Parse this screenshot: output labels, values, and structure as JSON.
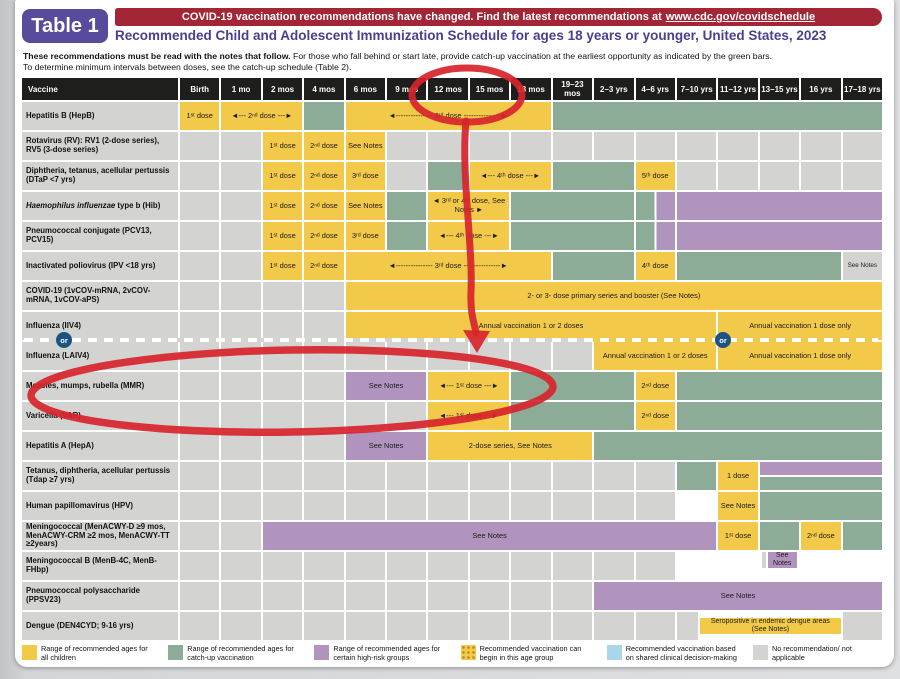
{
  "page": {
    "table_badge": "Table 1",
    "banner_text": "COVID-19 vaccination recommendations have changed. Find the latest recommendations at",
    "banner_url": "www.cdc.gov/covidschedule",
    "title": "Recommended Child and Adolescent Immunization Schedule for ages 18 years or younger, United States, 2023",
    "note_bold": "These recommendations must be read with the notes that follow.",
    "note_rest": "For those who fall behind or start late, provide catch-up vaccination at the earliest opportunity as indicated by the green bars.",
    "note_line2": "To determine minimum intervals between doses, see the catch-up schedule (Table 2)."
  },
  "or_label": "or",
  "columns": [
    "Vaccine",
    "Birth",
    "1 mo",
    "2 mos",
    "4 mos",
    "6 mos",
    "9 mos",
    "12 mos",
    "15 mos",
    "18 mos",
    "19–23 mos",
    "2–3 yrs",
    "4–6 yrs",
    "7–10 yrs",
    "11–12 yrs",
    "13–15 yrs",
    "16 yrs",
    "17–18 yrs"
  ],
  "rows": [
    {
      "label": "Hepatitis B (HepB)",
      "cells": [
        {
          "s": 1,
          "c": "y",
          "t": "1ˢᵗ dose"
        },
        {
          "s": 2,
          "c": "y",
          "t": "◄--- 2ⁿᵈ dose ---►",
          "cls": "nw"
        },
        {
          "s": 1,
          "c": "g"
        },
        {
          "s": 5,
          "c": "y",
          "t": "◄--------------- 3ʳᵈ dose ---------------►",
          "cls": "nw"
        },
        {
          "s": 8,
          "c": "g"
        }
      ]
    },
    {
      "label": "Rotavirus (RV): RV1 (2-dose series), RV5 (3-dose series)",
      "cells": [
        {
          "rep": 2,
          "c": "x"
        },
        {
          "s": 1,
          "c": "y",
          "t": "1ˢᵗ dose"
        },
        {
          "s": 1,
          "c": "y",
          "t": "2ⁿᵈ dose"
        },
        {
          "s": 1,
          "c": "y",
          "t": "See Notes"
        },
        {
          "rep": 12,
          "c": "x"
        }
      ]
    },
    {
      "label": "Diphtheria, tetanus, acellular pertussis (DTaP <7 yrs)",
      "cells": [
        {
          "rep": 2,
          "c": "x"
        },
        {
          "s": 1,
          "c": "y",
          "t": "1ˢᵗ dose"
        },
        {
          "s": 1,
          "c": "y",
          "t": "2ⁿᵈ dose"
        },
        {
          "s": 1,
          "c": "y",
          "t": "3ʳᵈ dose"
        },
        {
          "s": 1,
          "c": "x"
        },
        {
          "s": 1,
          "c": "g"
        },
        {
          "s": 2,
          "c": "y",
          "t": "◄--- 4ᵗʰ dose ---►",
          "cls": "nw"
        },
        {
          "s": 2,
          "c": "g"
        },
        {
          "s": 1,
          "c": "y",
          "t": "5ᵗʰ dose"
        },
        {
          "rep": 5,
          "c": "x"
        }
      ]
    },
    {
      "label_parts": [
        {
          "t": "Haemophilus influenzae",
          "i": true
        },
        {
          "t": " type b (Hib)"
        }
      ],
      "cells": [
        {
          "rep": 2,
          "c": "x"
        },
        {
          "s": 1,
          "c": "y",
          "t": "1ˢᵗ dose"
        },
        {
          "s": 1,
          "c": "y",
          "t": "2ⁿᵈ dose"
        },
        {
          "s": 1,
          "c": "y",
          "t": "See Notes"
        },
        {
          "s": 1,
          "c": "g"
        },
        {
          "s": 2,
          "c": "y",
          "t": "◄ 3ʳᵈ or 4ᵗʰ dose, See Notes ►"
        },
        {
          "s": 3,
          "c": "g"
        },
        {
          "s": 1,
          "type": "split"
        },
        {
          "s": 5,
          "c": "p"
        }
      ]
    },
    {
      "label": "Pneumococcal conjugate (PCV13, PCV15)",
      "cells": [
        {
          "rep": 2,
          "c": "x"
        },
        {
          "s": 1,
          "c": "y",
          "t": "1ˢᵗ dose"
        },
        {
          "s": 1,
          "c": "y",
          "t": "2ⁿᵈ dose"
        },
        {
          "s": 1,
          "c": "y",
          "t": "3ʳᵈ dose"
        },
        {
          "s": 1,
          "c": "g"
        },
        {
          "s": 2,
          "c": "y",
          "t": "◄--- 4ᵗʰ dose ---►",
          "cls": "nw"
        },
        {
          "s": 3,
          "c": "g"
        },
        {
          "s": 1,
          "type": "split"
        },
        {
          "s": 5,
          "c": "p"
        }
      ]
    },
    {
      "label": "Inactivated poliovirus (IPV <18 yrs)",
      "cells": [
        {
          "rep": 2,
          "c": "x"
        },
        {
          "s": 1,
          "c": "y",
          "t": "1ˢᵗ dose"
        },
        {
          "s": 1,
          "c": "y",
          "t": "2ⁿᵈ dose"
        },
        {
          "s": 5,
          "c": "y",
          "t": "◄--------------- 3ʳᵈ dose ---------------►",
          "cls": "nw"
        },
        {
          "s": 2,
          "c": "g"
        },
        {
          "s": 1,
          "c": "y",
          "t": "4ᵗʰ dose"
        },
        {
          "s": 4,
          "c": "g"
        },
        {
          "s": 1,
          "c": "x",
          "t": "See Notes",
          "cls": "tiny"
        }
      ]
    },
    {
      "label": "COVID-19 (1vCOV-mRNA, 2vCOV-mRNA, 1vCOV-aPS)",
      "cells": [
        {
          "rep": 4,
          "c": "x"
        },
        {
          "s": 13,
          "c": "y",
          "t": "2- or 3- dose primary series and booster (See Notes)"
        }
      ]
    },
    {
      "label": "Influenza (IIV4)",
      "cells": [
        {
          "rep": 4,
          "c": "x"
        },
        {
          "s": 9,
          "c": "y",
          "t": "Annual vaccination 1 or 2 doses"
        },
        {
          "s": 4,
          "c": "y",
          "t": "Annual vaccination 1 dose only"
        }
      ]
    },
    {
      "label": "Influenza (LAIV4)",
      "cells": [
        {
          "rep": 10,
          "c": "x"
        },
        {
          "s": 3,
          "c": "y",
          "t": "Annual vaccination 1 or 2 doses"
        },
        {
          "s": 4,
          "c": "y",
          "t": "Annual vaccination 1 dose only"
        }
      ]
    },
    {
      "label": "Measles, mumps, rubella (MMR)",
      "cells": [
        {
          "rep": 4,
          "c": "x"
        },
        {
          "s": 2,
          "c": "p",
          "t": "See Notes"
        },
        {
          "s": 2,
          "c": "y",
          "t": "◄--- 1ˢᵗ dose ---►",
          "cls": "nw"
        },
        {
          "s": 3,
          "c": "g"
        },
        {
          "s": 1,
          "c": "y",
          "t": "2ⁿᵈ dose"
        },
        {
          "s": 5,
          "c": "g"
        }
      ]
    },
    {
      "label": "Varicella (VAR)",
      "cells": [
        {
          "rep": 6,
          "c": "x"
        },
        {
          "s": 2,
          "c": "y",
          "t": "◄--- 1ˢᵗ dose ---►",
          "cls": "nw"
        },
        {
          "s": 3,
          "c": "g"
        },
        {
          "s": 1,
          "c": "y",
          "t": "2ⁿᵈ dose"
        },
        {
          "s": 5,
          "c": "g"
        }
      ]
    },
    {
      "label": "Hepatitis A (HepA)",
      "cells": [
        {
          "rep": 4,
          "c": "x"
        },
        {
          "s": 2,
          "c": "p",
          "t": "See Notes"
        },
        {
          "s": 4,
          "c": "y",
          "t": "2-dose series, See Notes"
        },
        {
          "s": 7,
          "c": "g"
        }
      ]
    },
    {
      "label": "Tetanus, diphtheria, acellular pertussis (Tdap ≥7 yrs)",
      "cells": [
        {
          "rep": 12,
          "c": "x"
        },
        {
          "s": 1,
          "c": "g"
        },
        {
          "s": 1,
          "c": "y",
          "t": "1 dose"
        },
        {
          "s": 3,
          "type": "hsplit"
        }
      ]
    },
    {
      "label": "Human papillomavirus (HPV)",
      "cells": [
        {
          "rep": 12,
          "c": "x"
        },
        {
          "s": 1,
          "type": "quad"
        },
        {
          "s": 1,
          "c": "y",
          "t": "See Notes"
        },
        {
          "s": 3,
          "c": "g"
        }
      ]
    },
    {
      "label": "Meningococcal (MenACWY-D ≥9 mos, MenACWY-CRM ≥2 mos,  MenACWY-TT ≥2years)",
      "cells": [
        {
          "rep": 2,
          "c": "x"
        },
        {
          "s": 11,
          "c": "p",
          "t": "See Notes"
        },
        {
          "s": 1,
          "c": "y",
          "t": "1ˢᵗ dose"
        },
        {
          "s": 1,
          "c": "g"
        },
        {
          "s": 1,
          "c": "y",
          "t": "2ⁿᵈ dose"
        },
        {
          "s": 1,
          "c": "g"
        }
      ]
    },
    {
      "label": "Meningococcal B (MenB-4C, MenB-FHbp)",
      "cells": [
        {
          "rep": 12,
          "c": "x"
        },
        {
          "s": 5,
          "type": "menb",
          "t": "See Notes"
        }
      ]
    },
    {
      "label": "Pneumococcal polysaccharide (PPSV23)",
      "cells": [
        {
          "rep": 10,
          "c": "x"
        },
        {
          "s": 7,
          "c": "p",
          "t": "See Notes"
        }
      ]
    },
    {
      "label": "Dengue (DEN4CYD; 9-16 yrs)",
      "cells": [
        {
          "rep": 12,
          "c": "x"
        },
        {
          "s": 4,
          "type": "dengue",
          "t": "Seropositive in endemic dengue areas (See Notes)"
        },
        {
          "s": 1,
          "c": "x"
        }
      ]
    }
  ],
  "legend": [
    {
      "c": "y",
      "t": "Range of recommended ages for all children"
    },
    {
      "c": "g",
      "t": "Range of recommended ages for catch-up vaccination"
    },
    {
      "c": "p",
      "t": "Range of recommended ages for certain high-risk groups"
    },
    {
      "c": "k",
      "t": "Recommended vaccination can begin in this age group"
    },
    {
      "c": "b",
      "t": "Recommended vaccination based on shared clinical decision-making"
    },
    {
      "c": "x",
      "t": "No recommendation/ not applicable"
    }
  ],
  "colors": {
    "all_children_yellow": "#F3C94A",
    "catch_up_green": "#8CAC97",
    "high_risk_purple": "#B194BD",
    "no_recommendation_gray": "#D3D3D1",
    "shared_decision_blue": "#AAD6E9",
    "header_black": "#1E1E1C",
    "banner_red": "#A32637",
    "title_purple": "#4C3E8F",
    "annotation_red": "#D7242B",
    "or_badge_blue": "#1C5385"
  }
}
